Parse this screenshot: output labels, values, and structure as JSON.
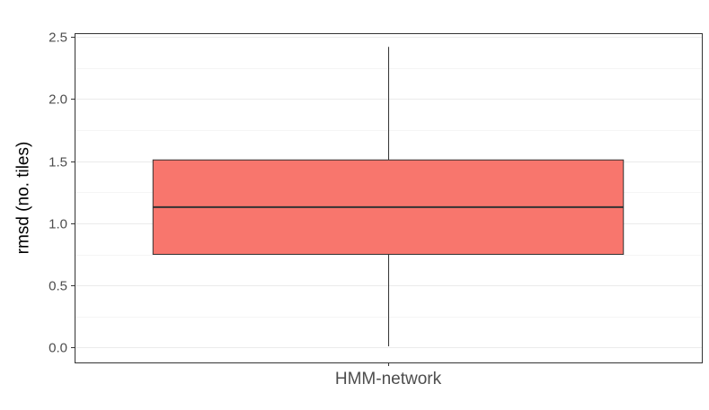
{
  "chart_data": {
    "type": "boxplot",
    "title": "",
    "xlabel": "",
    "ylabel": "rmsd (no. tiles)",
    "ylim": [
      -0.12,
      2.53
    ],
    "y_ticks": [
      0.0,
      0.5,
      1.0,
      1.5,
      2.0,
      2.5
    ],
    "y_tick_labels": [
      "0.0",
      "0.5",
      "1.0",
      "1.5",
      "2.0",
      "2.5"
    ],
    "grid": true,
    "legend": "none",
    "categories": [
      "HMM-network"
    ],
    "boxes": [
      {
        "category": "HMM-network",
        "min": 0.01,
        "q1": 0.75,
        "median": 1.13,
        "q3": 1.51,
        "max": 2.42,
        "fill": "#f8766d"
      }
    ]
  }
}
